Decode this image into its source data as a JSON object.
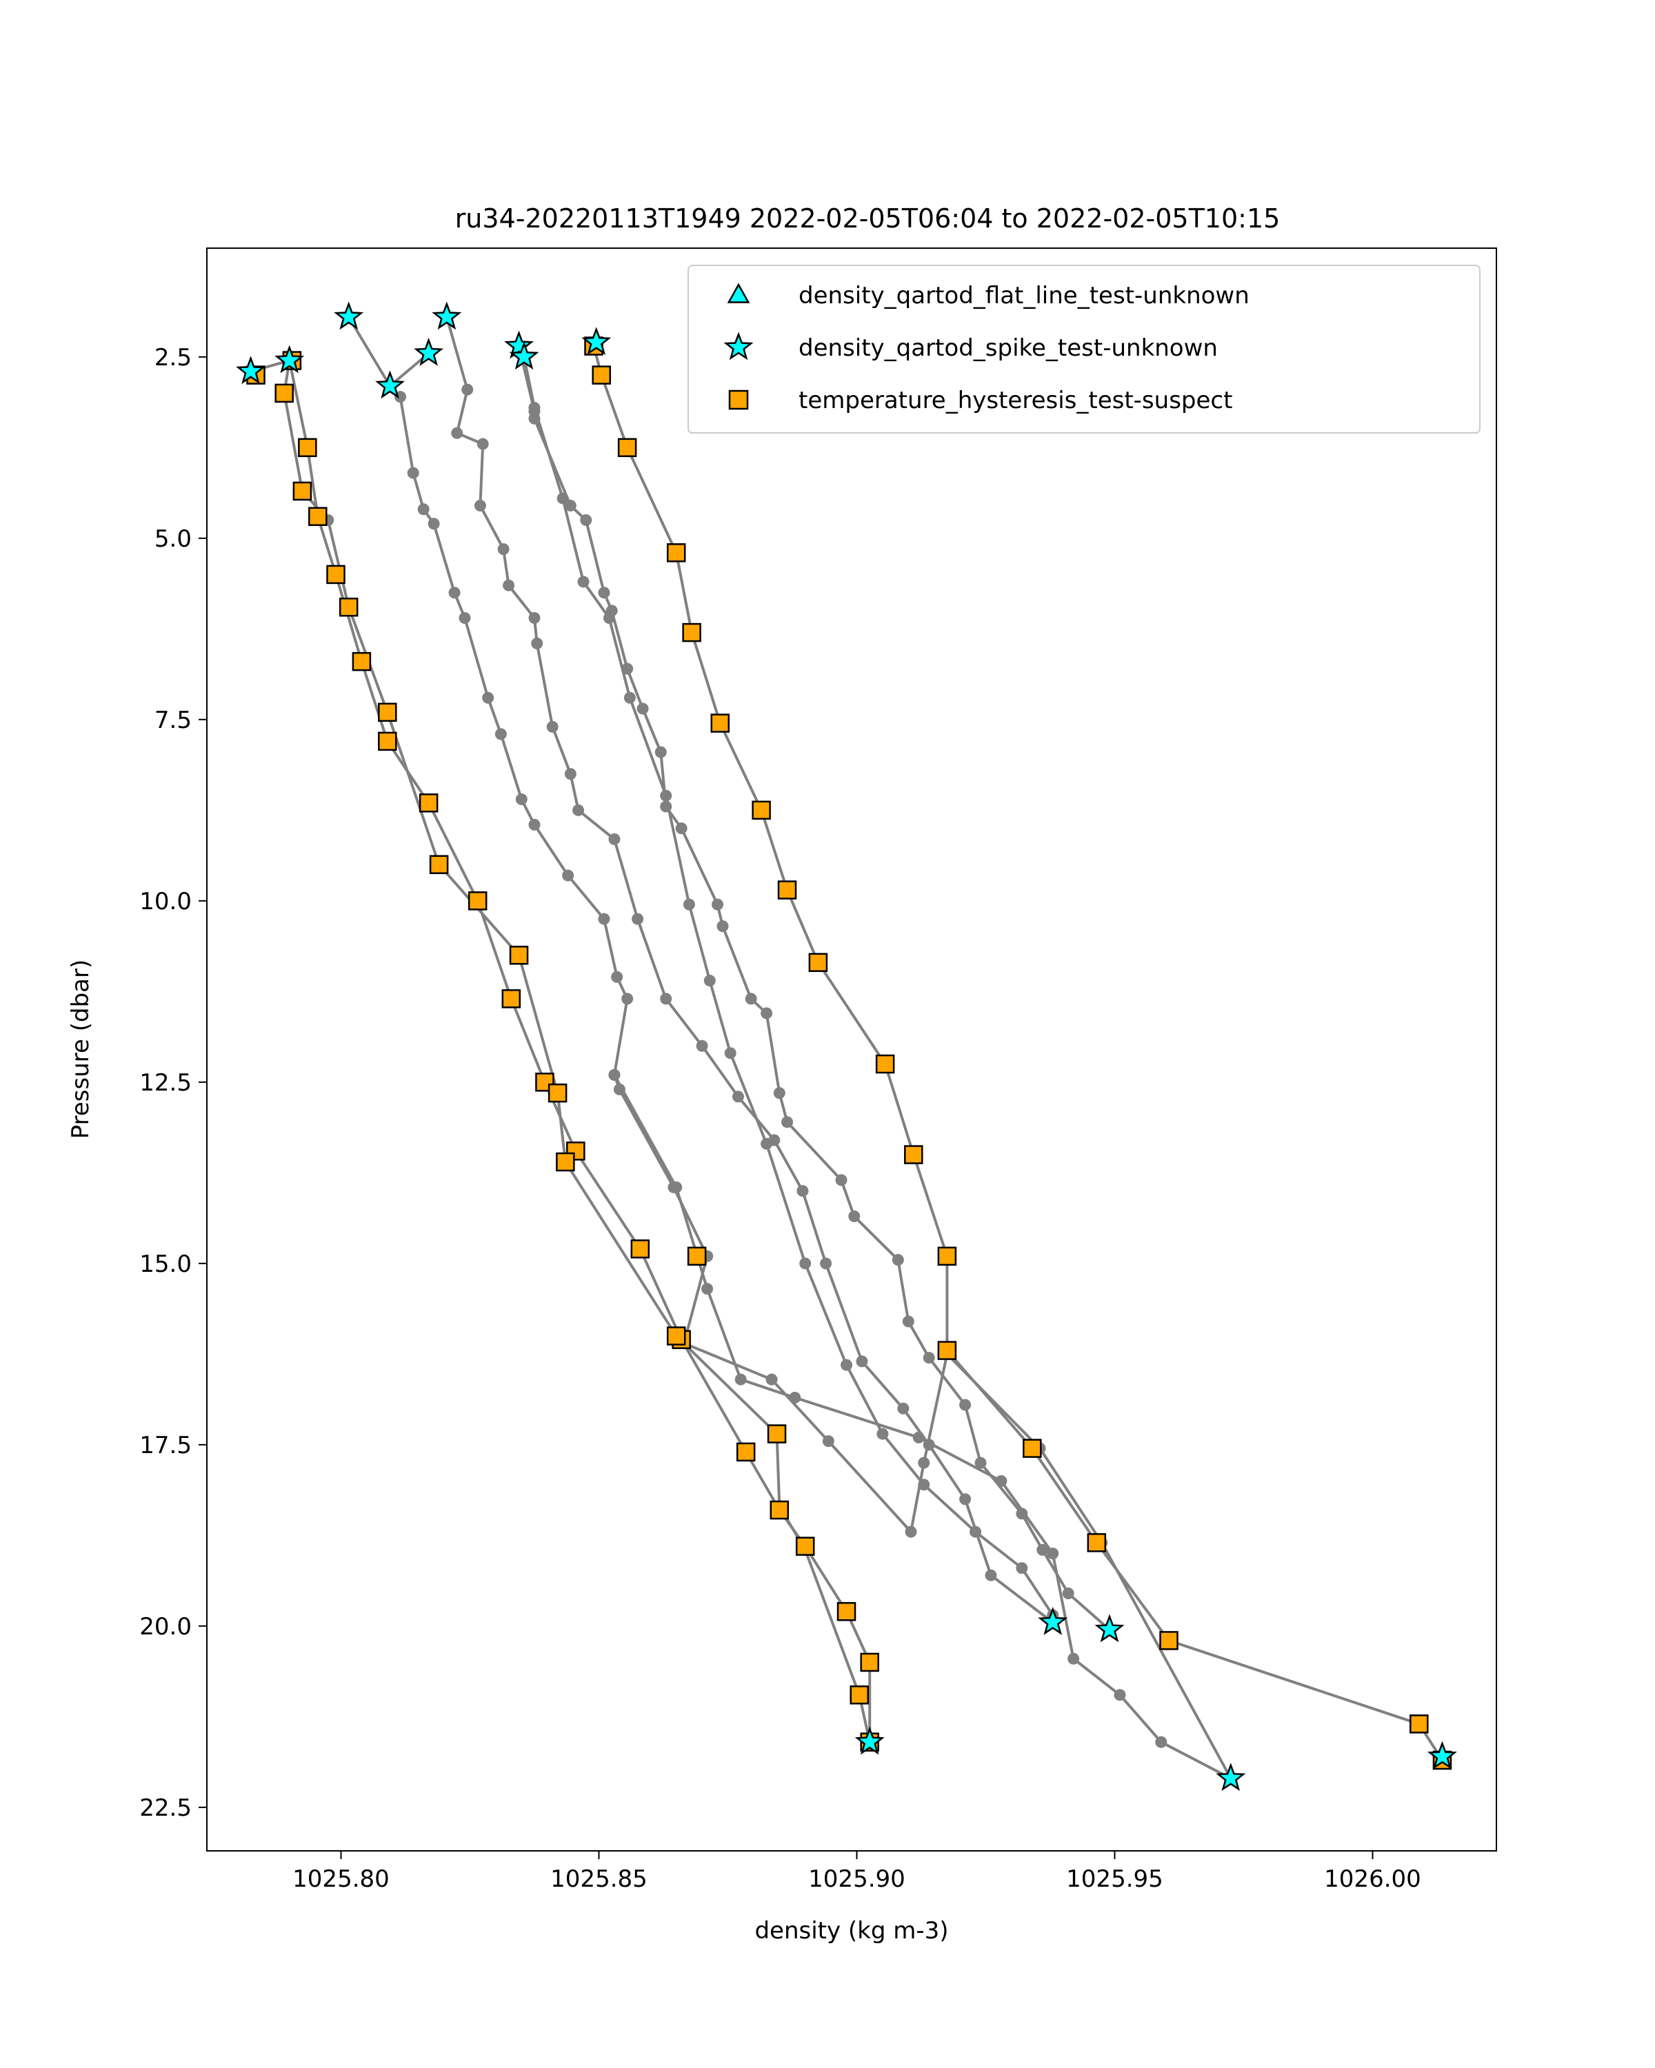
{
  "chart_data": {
    "type": "scatter",
    "title": "ru34-20220113T1949 2022-02-05T06:04 to 2022-02-05T10:15",
    "xlabel": "density (kg m-3)",
    "ylabel": "Pressure (dbar)",
    "xlim": [
      1025.774,
      1026.024
    ],
    "ylim": [
      23.1,
      1.0
    ],
    "y_inverted": true,
    "x_ticks": [
      1025.8,
      1025.85,
      1025.9,
      1025.95,
      1026.0
    ],
    "x_tick_labels": [
      "1025.80",
      "1025.85",
      "1025.90",
      "1025.95",
      "1026.00"
    ],
    "y_ticks": [
      2.5,
      5.0,
      7.5,
      10.0,
      12.5,
      15.0,
      17.5,
      20.0,
      22.5
    ],
    "y_tick_labels": [
      "2.5",
      "5.0",
      "7.5",
      "10.0",
      "12.5",
      "15.0",
      "17.5",
      "20.0",
      "22.5"
    ],
    "grid": false,
    "legend_position": "top-right",
    "colors": {
      "profile_line": "#808080",
      "flat_line_marker": "#00ffff",
      "spike_marker": "#00ffff",
      "suspect_marker": "#ffa500",
      "marker_edge": "#000000"
    },
    "series": [
      {
        "name": "density_qartod_flat_line_test-unknown",
        "marker": "triangle",
        "color": "#00ffff",
        "points": []
      },
      {
        "name": "density_qartod_spike_test-unknown",
        "marker": "star",
        "color": "#00ffff",
        "points": [
          [
            1025.8015,
            1.95
          ],
          [
            1025.8095,
            2.9
          ],
          [
            1025.817,
            2.45
          ],
          [
            1025.8205,
            1.95
          ],
          [
            1025.8345,
            2.35
          ],
          [
            1025.8355,
            2.5
          ],
          [
            1025.8495,
            2.3
          ],
          [
            1025.7825,
            2.7
          ],
          [
            1025.79,
            2.55
          ],
          [
            1025.938,
            19.95
          ],
          [
            1025.949,
            20.05
          ],
          [
            1025.9725,
            22.1
          ],
          [
            1026.0135,
            21.8
          ],
          [
            1025.9025,
            21.6
          ]
        ]
      },
      {
        "name": "temperature_hysteresis_test-suspect",
        "marker": "square",
        "color": "#ffa500",
        "points": [
          [
            1025.7905,
            2.55
          ],
          [
            1025.7835,
            2.75
          ],
          [
            1025.789,
            3.0
          ],
          [
            1025.7935,
            3.75
          ],
          [
            1025.7925,
            4.35
          ],
          [
            1025.7955,
            4.7
          ],
          [
            1025.799,
            5.5
          ],
          [
            1025.8015,
            5.95
          ],
          [
            1025.804,
            6.7
          ],
          [
            1025.809,
            7.4
          ],
          [
            1025.809,
            7.8
          ],
          [
            1025.817,
            8.65
          ],
          [
            1025.819,
            9.5
          ],
          [
            1025.8265,
            10.0
          ],
          [
            1025.8345,
            10.75
          ],
          [
            1025.833,
            11.35
          ],
          [
            1025.8395,
            12.5
          ],
          [
            1025.842,
            12.65
          ],
          [
            1025.8455,
            13.45
          ],
          [
            1025.8435,
            13.6
          ],
          [
            1025.858,
            14.8
          ],
          [
            1025.869,
            14.9
          ],
          [
            1025.866,
            16.05
          ],
          [
            1025.865,
            16.0
          ],
          [
            1025.8845,
            17.35
          ],
          [
            1025.8785,
            17.6
          ],
          [
            1025.885,
            18.4
          ],
          [
            1025.89,
            18.9
          ],
          [
            1025.898,
            19.8
          ],
          [
            1025.9025,
            20.5
          ],
          [
            1025.9005,
            20.95
          ],
          [
            1025.9025,
            21.6
          ],
          [
            1025.849,
            2.35
          ],
          [
            1025.8505,
            2.75
          ],
          [
            1025.8555,
            3.75
          ],
          [
            1025.865,
            5.2
          ],
          [
            1025.868,
            6.3
          ],
          [
            1025.8735,
            7.55
          ],
          [
            1025.8815,
            8.75
          ],
          [
            1025.8865,
            9.85
          ],
          [
            1025.8925,
            10.85
          ],
          [
            1025.9055,
            12.25
          ],
          [
            1025.911,
            13.5
          ],
          [
            1025.9175,
            14.9
          ],
          [
            1025.9175,
            16.2
          ],
          [
            1025.934,
            17.55
          ],
          [
            1025.9465,
            18.85
          ],
          [
            1025.9605,
            20.2
          ],
          [
            1026.009,
            21.35
          ],
          [
            1026.0135,
            21.85
          ]
        ]
      }
    ],
    "profiles": [
      [
        [
          1025.8015,
          1.95
        ],
        [
          1025.8095,
          2.9
        ],
        [
          1025.8115,
          3.05
        ],
        [
          1025.814,
          4.1
        ],
        [
          1025.816,
          4.6
        ],
        [
          1025.818,
          4.8
        ],
        [
          1025.822,
          5.75
        ],
        [
          1025.824,
          6.1
        ],
        [
          1025.8285,
          7.2
        ],
        [
          1025.831,
          7.7
        ],
        [
          1025.835,
          8.6
        ],
        [
          1025.8375,
          8.95
        ],
        [
          1025.844,
          9.65
        ],
        [
          1025.851,
          10.25
        ],
        [
          1025.8535,
          11.05
        ],
        [
          1025.8555,
          11.35
        ],
        [
          1025.853,
          12.4
        ],
        [
          1025.854,
          12.6
        ],
        [
          1025.8645,
          13.95
        ],
        [
          1025.871,
          14.9
        ]
      ],
      [
        [
          1025.8205,
          1.95
        ],
        [
          1025.8245,
          2.95
        ],
        [
          1025.8225,
          3.55
        ],
        [
          1025.8275,
          3.7
        ],
        [
          1025.827,
          4.55
        ],
        [
          1025.8315,
          5.15
        ],
        [
          1025.8325,
          5.65
        ],
        [
          1025.8375,
          6.1
        ],
        [
          1025.838,
          6.45
        ],
        [
          1025.841,
          7.6
        ],
        [
          1025.8445,
          8.25
        ],
        [
          1025.846,
          8.75
        ],
        [
          1025.853,
          9.15
        ],
        [
          1025.8575,
          10.25
        ],
        [
          1025.863,
          11.35
        ],
        [
          1025.87,
          12.0
        ],
        [
          1025.877,
          12.7
        ],
        [
          1025.884,
          13.3
        ],
        [
          1025.8895,
          14.0
        ],
        [
          1025.894,
          15.0
        ],
        [
          1025.901,
          16.35
        ],
        [
          1025.909,
          17.0
        ],
        [
          1025.914,
          17.5
        ],
        [
          1025.921,
          18.25
        ],
        [
          1025.926,
          19.3
        ],
        [
          1025.938,
          19.95
        ]
      ],
      [
        [
          1025.817,
          2.45
        ],
        [
          1025.8095,
          2.9
        ]
      ],
      [
        [
          1025.8345,
          2.35
        ],
        [
          1025.8375,
          3.25
        ],
        [
          1025.8375,
          3.35
        ],
        [
          1025.8445,
          4.55
        ],
        [
          1025.8475,
          4.75
        ],
        [
          1025.851,
          5.75
        ],
        [
          1025.8525,
          6.0
        ],
        [
          1025.8555,
          6.8
        ],
        [
          1025.8585,
          7.35
        ],
        [
          1025.862,
          7.95
        ],
        [
          1025.863,
          8.7
        ],
        [
          1025.866,
          9.0
        ],
        [
          1025.873,
          10.05
        ],
        [
          1025.874,
          10.35
        ],
        [
          1025.8795,
          11.35
        ],
        [
          1025.8825,
          11.55
        ],
        [
          1025.885,
          12.65
        ],
        [
          1025.8865,
          13.05
        ],
        [
          1025.897,
          13.85
        ],
        [
          1025.8995,
          14.35
        ],
        [
          1025.908,
          14.95
        ],
        [
          1025.91,
          15.8
        ],
        [
          1025.914,
          16.3
        ],
        [
          1025.921,
          16.95
        ],
        [
          1025.924,
          17.75
        ],
        [
          1025.932,
          18.45
        ],
        [
          1025.936,
          18.95
        ],
        [
          1025.941,
          19.55
        ],
        [
          1025.949,
          20.05
        ]
      ],
      [
        [
          1025.8355,
          2.5
        ],
        [
          1025.8375,
          3.2
        ],
        [
          1025.843,
          4.45
        ],
        [
          1025.847,
          5.6
        ],
        [
          1025.852,
          6.1
        ],
        [
          1025.856,
          7.2
        ],
        [
          1025.863,
          8.55
        ],
        [
          1025.8675,
          10.05
        ],
        [
          1025.8715,
          11.1
        ],
        [
          1025.8755,
          12.1
        ],
        [
          1025.8825,
          13.35
        ],
        [
          1025.89,
          15.0
        ],
        [
          1025.898,
          16.4
        ],
        [
          1025.905,
          17.35
        ],
        [
          1025.913,
          18.05
        ],
        [
          1025.923,
          18.7
        ],
        [
          1025.932,
          19.2
        ],
        [
          1025.938,
          19.85
        ]
      ],
      [
        [
          1025.7825,
          2.7
        ],
        [
          1025.79,
          2.55
        ],
        [
          1025.7935,
          3.75
        ],
        [
          1025.7955,
          4.7
        ],
        [
          1025.799,
          5.5
        ],
        [
          1025.804,
          6.7
        ],
        [
          1025.809,
          7.8
        ],
        [
          1025.817,
          8.65
        ],
        [
          1025.8265,
          10.0
        ],
        [
          1025.833,
          11.35
        ],
        [
          1025.8395,
          12.5
        ],
        [
          1025.8455,
          13.45
        ],
        [
          1025.858,
          14.8
        ],
        [
          1025.866,
          16.05
        ],
        [
          1025.8785,
          17.6
        ],
        [
          1025.885,
          18.4
        ],
        [
          1025.89,
          18.9
        ],
        [
          1025.898,
          19.8
        ],
        [
          1025.9025,
          20.5
        ],
        [
          1025.9025,
          21.6
        ]
      ],
      [
        [
          1025.79,
          2.55
        ],
        [
          1025.789,
          3.0
        ],
        [
          1025.7925,
          4.35
        ],
        [
          1025.7975,
          4.75
        ],
        [
          1025.8015,
          5.95
        ],
        [
          1025.809,
          7.4
        ],
        [
          1025.819,
          9.5
        ],
        [
          1025.8345,
          10.75
        ],
        [
          1025.842,
          12.65
        ],
        [
          1025.8435,
          13.6
        ],
        [
          1025.865,
          16.0
        ],
        [
          1025.8845,
          17.35
        ],
        [
          1025.885,
          18.35
        ],
        [
          1025.89,
          18.95
        ],
        [
          1025.9005,
          20.95
        ],
        [
          1025.9025,
          21.6
        ]
      ],
      [
        [
          1025.849,
          2.35
        ],
        [
          1025.8505,
          2.75
        ],
        [
          1025.8555,
          3.75
        ],
        [
          1025.865,
          5.2
        ],
        [
          1025.868,
          6.3
        ],
        [
          1025.8735,
          7.55
        ],
        [
          1025.8815,
          8.75
        ],
        [
          1025.8865,
          9.85
        ],
        [
          1025.8925,
          10.85
        ],
        [
          1025.9055,
          12.25
        ],
        [
          1025.911,
          13.5
        ],
        [
          1025.9175,
          14.9
        ],
        [
          1025.9175,
          16.2
        ],
        [
          1025.934,
          17.55
        ],
        [
          1025.9465,
          18.85
        ],
        [
          1025.9605,
          20.2
        ],
        [
          1026.009,
          21.35
        ],
        [
          1026.0135,
          21.85
        ]
      ],
      [
        [
          1025.853,
          12.4
        ],
        [
          1025.865,
          13.95
        ],
        [
          1025.871,
          15.35
        ],
        [
          1025.8775,
          16.6
        ],
        [
          1025.888,
          16.85
        ],
        [
          1025.912,
          17.4
        ],
        [
          1025.928,
          18.0
        ],
        [
          1025.938,
          19.0
        ],
        [
          1025.942,
          20.45
        ],
        [
          1025.951,
          20.95
        ],
        [
          1025.959,
          21.6
        ],
        [
          1025.9725,
          22.1
        ]
      ],
      [
        [
          1025.871,
          14.9
        ],
        [
          1025.8665,
          16.1
        ],
        [
          1025.8835,
          16.6
        ],
        [
          1025.8945,
          17.45
        ],
        [
          1025.9105,
          18.7
        ],
        [
          1025.913,
          17.75
        ],
        [
          1025.9175,
          16.25
        ],
        [
          1025.9355,
          17.55
        ],
        [
          1025.9475,
          18.85
        ],
        [
          1025.9725,
          22.1
        ]
      ]
    ]
  }
}
